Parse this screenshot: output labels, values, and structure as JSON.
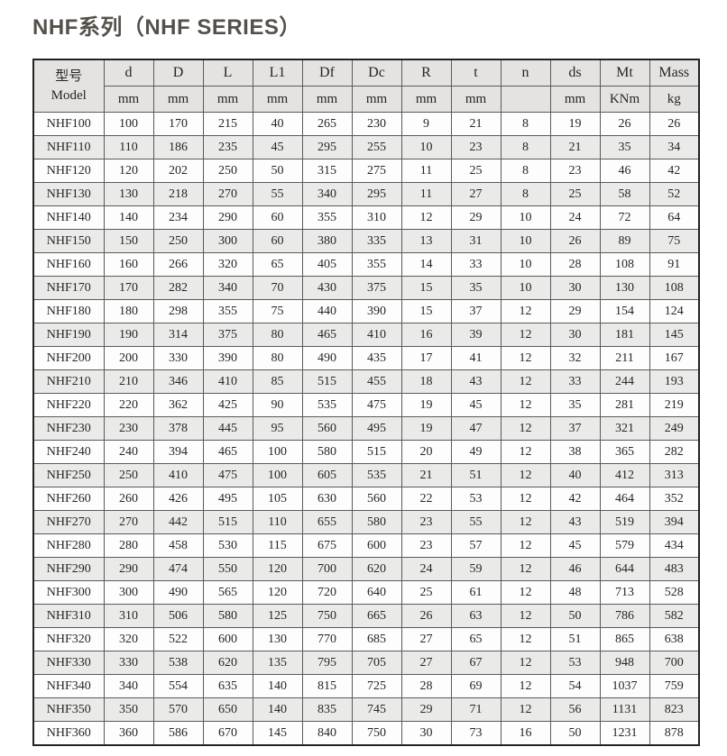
{
  "page": {
    "title": "NHF系列（NHF SERIES）"
  },
  "colors": {
    "title_text": "#55504a",
    "header_background": "#e4e3e1",
    "striped_row_background": "#eaeae8",
    "outer_border": "#222222",
    "inner_border": "#5a5a5a"
  },
  "table": {
    "model_header": {
      "line1": "型号",
      "line2": "Model"
    },
    "columns": [
      {
        "name": "d",
        "unit": "mm"
      },
      {
        "name": "D",
        "unit": "mm"
      },
      {
        "name": "L",
        "unit": "mm"
      },
      {
        "name": "L1",
        "unit": "mm"
      },
      {
        "name": "Df",
        "unit": "mm"
      },
      {
        "name": "Dc",
        "unit": "mm"
      },
      {
        "name": "R",
        "unit": "mm"
      },
      {
        "name": "t",
        "unit": "mm"
      },
      {
        "name": "n",
        "unit": ""
      },
      {
        "name": "ds",
        "unit": "mm"
      },
      {
        "name": "Mt",
        "unit": "KNm"
      },
      {
        "name": "Mass",
        "unit": "kg"
      }
    ],
    "rows": [
      {
        "model": "NHF100",
        "values": [
          100,
          170,
          215,
          40,
          265,
          230,
          9,
          21,
          8,
          19,
          26,
          26
        ]
      },
      {
        "model": "NHF110",
        "values": [
          110,
          186,
          235,
          45,
          295,
          255,
          10,
          23,
          8,
          21,
          35,
          34
        ]
      },
      {
        "model": "NHF120",
        "values": [
          120,
          202,
          250,
          50,
          315,
          275,
          11,
          25,
          8,
          23,
          46,
          42
        ]
      },
      {
        "model": "NHF130",
        "values": [
          130,
          218,
          270,
          55,
          340,
          295,
          11,
          27,
          8,
          25,
          58,
          52
        ]
      },
      {
        "model": "NHF140",
        "values": [
          140,
          234,
          290,
          60,
          355,
          310,
          12,
          29,
          10,
          24,
          72,
          64
        ]
      },
      {
        "model": "NHF150",
        "values": [
          150,
          250,
          300,
          60,
          380,
          335,
          13,
          31,
          10,
          26,
          89,
          75
        ]
      },
      {
        "model": "NHF160",
        "values": [
          160,
          266,
          320,
          65,
          405,
          355,
          14,
          33,
          10,
          28,
          108,
          91
        ]
      },
      {
        "model": "NHF170",
        "values": [
          170,
          282,
          340,
          70,
          430,
          375,
          15,
          35,
          10,
          30,
          130,
          108
        ]
      },
      {
        "model": "NHF180",
        "values": [
          180,
          298,
          355,
          75,
          440,
          390,
          15,
          37,
          12,
          29,
          154,
          124
        ]
      },
      {
        "model": "NHF190",
        "values": [
          190,
          314,
          375,
          80,
          465,
          410,
          16,
          39,
          12,
          30,
          181,
          145
        ]
      },
      {
        "model": "NHF200",
        "values": [
          200,
          330,
          390,
          80,
          490,
          435,
          17,
          41,
          12,
          32,
          211,
          167
        ]
      },
      {
        "model": "NHF210",
        "values": [
          210,
          346,
          410,
          85,
          515,
          455,
          18,
          43,
          12,
          33,
          244,
          193
        ]
      },
      {
        "model": "NHF220",
        "values": [
          220,
          362,
          425,
          90,
          535,
          475,
          19,
          45,
          12,
          35,
          281,
          219
        ]
      },
      {
        "model": "NHF230",
        "values": [
          230,
          378,
          445,
          95,
          560,
          495,
          19,
          47,
          12,
          37,
          321,
          249
        ]
      },
      {
        "model": "NHF240",
        "values": [
          240,
          394,
          465,
          100,
          580,
          515,
          20,
          49,
          12,
          38,
          365,
          282
        ]
      },
      {
        "model": "NHF250",
        "values": [
          250,
          410,
          475,
          100,
          605,
          535,
          21,
          51,
          12,
          40,
          412,
          313
        ]
      },
      {
        "model": "NHF260",
        "values": [
          260,
          426,
          495,
          105,
          630,
          560,
          22,
          53,
          12,
          42,
          464,
          352
        ]
      },
      {
        "model": "NHF270",
        "values": [
          270,
          442,
          515,
          110,
          655,
          580,
          23,
          55,
          12,
          43,
          519,
          394
        ]
      },
      {
        "model": "NHF280",
        "values": [
          280,
          458,
          530,
          115,
          675,
          600,
          23,
          57,
          12,
          45,
          579,
          434
        ]
      },
      {
        "model": "NHF290",
        "values": [
          290,
          474,
          550,
          120,
          700,
          620,
          24,
          59,
          12,
          46,
          644,
          483
        ]
      },
      {
        "model": "NHF300",
        "values": [
          300,
          490,
          565,
          120,
          720,
          640,
          25,
          61,
          12,
          48,
          713,
          528
        ]
      },
      {
        "model": "NHF310",
        "values": [
          310,
          506,
          580,
          125,
          750,
          665,
          26,
          63,
          12,
          50,
          786,
          582
        ]
      },
      {
        "model": "NHF320",
        "values": [
          320,
          522,
          600,
          130,
          770,
          685,
          27,
          65,
          12,
          51,
          865,
          638
        ]
      },
      {
        "model": "NHF330",
        "values": [
          330,
          538,
          620,
          135,
          795,
          705,
          27,
          67,
          12,
          53,
          948,
          700
        ]
      },
      {
        "model": "NHF340",
        "values": [
          340,
          554,
          635,
          140,
          815,
          725,
          28,
          69,
          12,
          54,
          1037,
          759
        ]
      },
      {
        "model": "NHF350",
        "values": [
          350,
          570,
          650,
          140,
          835,
          745,
          29,
          71,
          12,
          56,
          1131,
          823
        ]
      },
      {
        "model": "NHF360",
        "values": [
          360,
          586,
          670,
          145,
          840,
          750,
          30,
          73,
          16,
          50,
          1231,
          878
        ]
      }
    ]
  }
}
